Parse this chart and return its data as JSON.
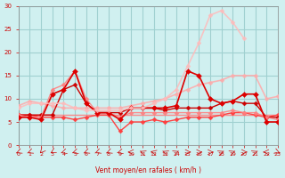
{
  "xlabel": "Vent moyen/en rafales ( km/h )",
  "bg_color": "#d0f0f0",
  "grid_color": "#a0d0d0",
  "xlim": [
    0,
    23
  ],
  "ylim": [
    0,
    30
  ],
  "yticks": [
    0,
    5,
    10,
    15,
    20,
    25,
    30
  ],
  "xticks": [
    0,
    1,
    2,
    3,
    4,
    5,
    6,
    7,
    8,
    9,
    10,
    11,
    12,
    13,
    14,
    15,
    16,
    17,
    18,
    19,
    20,
    21,
    22,
    23
  ],
  "series": [
    {
      "x": [
        0,
        1,
        2,
        3,
        4,
        5,
        6,
        7,
        8,
        9,
        10,
        11,
        12,
        13,
        14,
        15,
        16,
        17,
        18,
        19,
        20,
        21,
        22,
        23
      ],
      "y": [
        6.5,
        6.5,
        6.5,
        6.5,
        6.5,
        6.5,
        6.5,
        6.5,
        6.5,
        6.5,
        6.5,
        6.5,
        6.5,
        6.5,
        6.5,
        6.5,
        6.5,
        6.5,
        6.5,
        6.5,
        6.5,
        6.5,
        6.5,
        6.5
      ],
      "color": "#ff6060",
      "lw": 1.0,
      "marker": null,
      "alpha": 0.7
    },
    {
      "x": [
        0,
        1,
        2,
        3,
        4,
        5,
        6,
        7,
        8,
        9,
        10,
        11,
        12,
        13,
        14,
        15,
        16,
        17,
        18,
        19,
        20,
        21,
        22,
        23
      ],
      "y": [
        8.5,
        9.5,
        9,
        8.5,
        8,
        8,
        8,
        8,
        8,
        8,
        8.5,
        9,
        9.5,
        10,
        11,
        12,
        13,
        13.5,
        14,
        15,
        15,
        15,
        10,
        10.5
      ],
      "color": "#ffaaaa",
      "lw": 1.2,
      "marker": "D",
      "markersize": 2.5,
      "alpha": 0.85
    },
    {
      "x": [
        0,
        1,
        2,
        3,
        4,
        5,
        6,
        7,
        8,
        9,
        10,
        11,
        12,
        13,
        14,
        15,
        16,
        17,
        18,
        19,
        20,
        21,
        22,
        23
      ],
      "y": [
        6.5,
        6.5,
        6,
        6,
        6,
        5.5,
        6,
        6.5,
        6.5,
        3,
        5,
        5,
        5.5,
        5,
        5.5,
        6,
        6,
        6,
        6.5,
        7,
        7,
        6.5,
        6,
        6.5
      ],
      "color": "#ff4040",
      "lw": 1.0,
      "marker": "D",
      "markersize": 2.5,
      "alpha": 1.0
    },
    {
      "x": [
        0,
        1,
        2,
        3,
        4,
        5,
        6,
        7,
        8,
        9,
        10,
        11,
        12,
        13,
        14,
        15,
        16,
        17,
        18,
        19,
        20,
        21,
        22,
        23
      ],
      "y": [
        6.5,
        6.5,
        6.5,
        6.5,
        12,
        13,
        9,
        7,
        7,
        7,
        8,
        8,
        8,
        7.5,
        8,
        8,
        8,
        8,
        9,
        9.5,
        9,
        9,
        6,
        6
      ],
      "color": "#cc0000",
      "lw": 1.0,
      "marker": "D",
      "markersize": 2.5,
      "alpha": 1.0
    },
    {
      "x": [
        0,
        1,
        2,
        3,
        4,
        5,
        6,
        7,
        8,
        9,
        10,
        11,
        12,
        13,
        14,
        15,
        16,
        17,
        18,
        19,
        20,
        21,
        22,
        23
      ],
      "y": [
        6.5,
        6,
        6,
        12,
        13,
        16,
        10,
        7,
        7,
        6,
        7,
        7,
        7,
        7,
        7,
        7,
        7,
        7,
        7,
        7.5,
        7,
        7,
        6,
        5.5
      ],
      "color": "#ff8080",
      "lw": 1.0,
      "marker": "D",
      "markersize": 2.5,
      "alpha": 0.9
    },
    {
      "x": [
        0,
        1,
        2,
        3,
        4,
        5,
        6,
        7,
        8,
        9,
        10,
        11,
        12,
        13,
        14,
        15,
        16,
        17,
        18,
        19,
        20,
        21,
        22,
        23
      ],
      "y": [
        6,
        6,
        5.5,
        11,
        12,
        16,
        9,
        7,
        7,
        5.5,
        8,
        8,
        8,
        8,
        8.5,
        16,
        15,
        10,
        9,
        9.5,
        11,
        11,
        5,
        5
      ],
      "color": "#dd0000",
      "lw": 1.2,
      "marker": "D",
      "markersize": 3.0,
      "alpha": 1.0
    },
    {
      "x": [
        0,
        1,
        2,
        3,
        4,
        5,
        6,
        7,
        8,
        9,
        10,
        11,
        12,
        13,
        14,
        15,
        16,
        17,
        18,
        19,
        20,
        21,
        22,
        23
      ],
      "y": [
        8,
        9,
        9,
        9,
        9,
        8,
        7.5,
        7.5,
        7.5,
        7.5,
        8,
        8,
        9,
        10,
        12,
        17,
        22,
        28,
        29,
        26.5,
        23,
        null,
        null,
        null
      ],
      "color": "#ffbbbb",
      "lw": 1.2,
      "marker": "D",
      "markersize": 2.5,
      "alpha": 0.85
    },
    {
      "x": [
        0,
        1,
        2,
        3,
        4,
        5,
        6,
        7,
        8,
        9,
        10,
        11,
        12,
        13,
        14,
        15,
        16,
        17,
        18,
        19,
        20,
        21,
        22,
        23
      ],
      "y": [
        6.5,
        6.5,
        6.5,
        6.5,
        6.5,
        6.5,
        6.5,
        6.5,
        6.5,
        6.5,
        6.5,
        6.5,
        6.5,
        6.5,
        6.5,
        6.5,
        6.5,
        6.5,
        6.5,
        6.5,
        6.5,
        6.5,
        6.5,
        6.5
      ],
      "color": "#ff9090",
      "lw": 0.8,
      "marker": null,
      "alpha": 0.6
    }
  ],
  "wind_arrows": {
    "x": [
      0,
      1,
      2,
      3,
      4,
      5,
      6,
      7,
      8,
      9,
      10,
      11,
      12,
      13,
      14,
      15,
      16,
      17,
      18,
      19,
      20,
      21,
      22,
      23
    ],
    "angles": [
      225,
      225,
      200,
      215,
      230,
      230,
      225,
      225,
      225,
      235,
      270,
      315,
      300,
      315,
      45,
      90,
      90,
      90,
      45,
      45,
      90,
      45,
      270,
      135
    ]
  }
}
